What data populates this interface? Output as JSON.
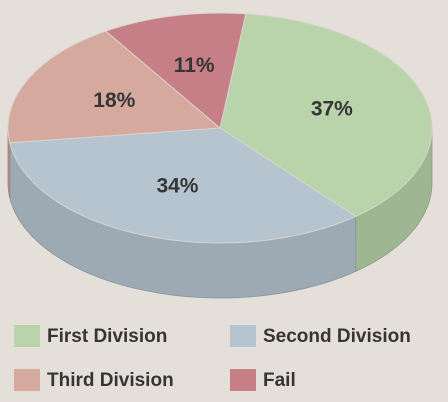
{
  "chart_data": {
    "type": "pie",
    "categories": [
      "First Division",
      "Second Division",
      "Third Division",
      "Fail"
    ],
    "values": [
      37,
      34,
      18,
      11
    ],
    "value_labels": [
      "37%",
      "34%",
      "18%",
      "11%"
    ],
    "colors": [
      "#b9d4aa",
      "#b6c4d0",
      "#d6a99f",
      "#c67f87"
    ]
  }
}
